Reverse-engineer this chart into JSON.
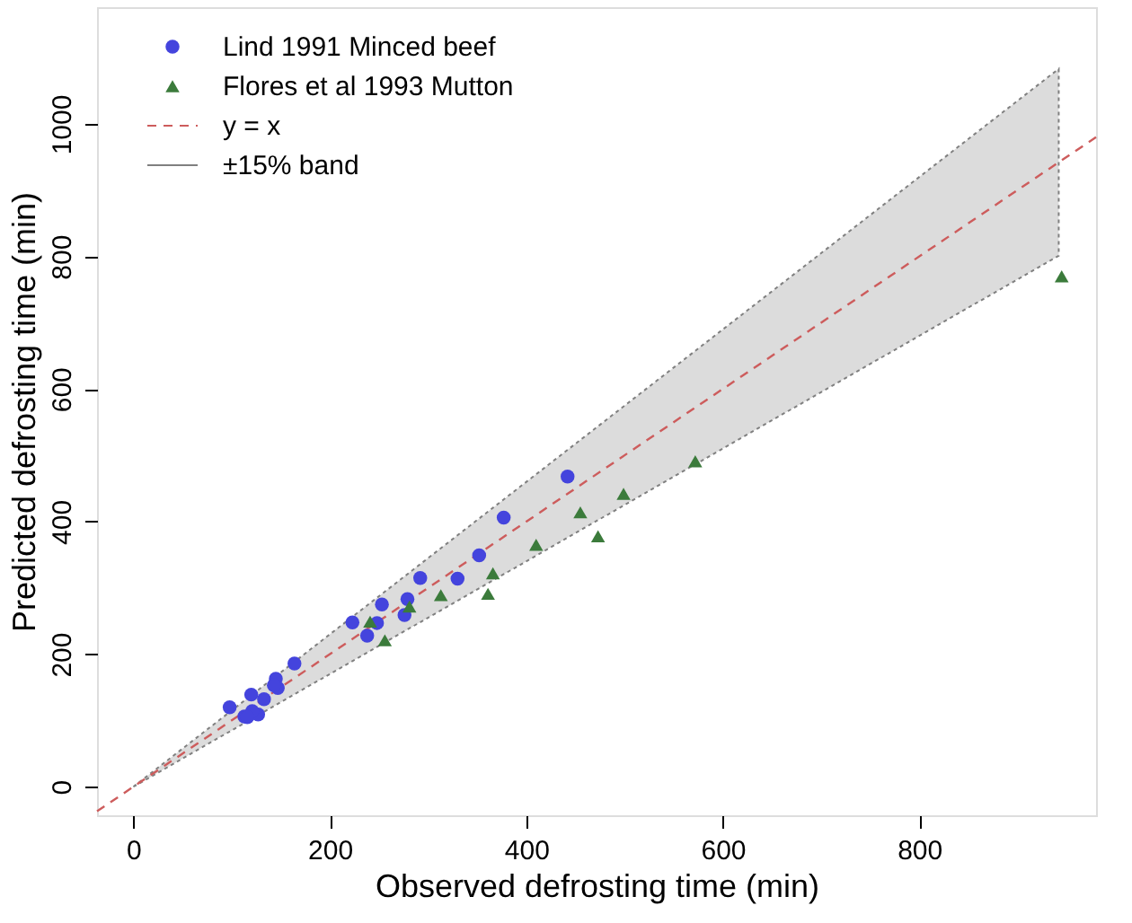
{
  "chart_data": {
    "type": "scatter",
    "xlabel": "Observed defrosting time (min)",
    "ylabel": "Predicted defrosting time (min)",
    "xlim": [
      -37,
      980
    ],
    "ylim": [
      -43,
      1176
    ],
    "xticks": [
      0,
      200,
      400,
      600,
      800
    ],
    "yticks": [
      0,
      200,
      400,
      600,
      800,
      1000
    ],
    "grid": false,
    "legend": "top left",
    "annotations": [
      "±15% band"
    ],
    "series": [
      {
        "name": "Lind 1991 Minced beef",
        "color": "#4444dd",
        "marker": "circle",
        "x": [
          442,
          377,
          352,
          330,
          292,
          279,
          276,
          253,
          248,
          238,
          223,
          164,
          145,
          147,
          143,
          133,
          120,
          98,
          127,
          121,
          113,
          116
        ],
        "values": [
          468,
          406,
          349,
          314,
          315,
          283,
          259,
          275,
          247,
          228,
          248,
          186,
          163,
          149,
          153,
          132,
          139,
          120,
          109,
          114,
          106,
          105
        ]
      },
      {
        "name": "Flores et al 1993 Mutton",
        "color": "#3b7b3b",
        "marker": "triangle",
        "x": [
          241,
          256,
          281,
          313,
          366,
          361,
          410,
          455,
          473,
          499,
          572,
          945
        ],
        "values": [
          249,
          221,
          272,
          289,
          322,
          291,
          365,
          414,
          378,
          442,
          491,
          770
        ]
      },
      {
        "name": "y = x",
        "type": "line",
        "color": "#cd5c5c",
        "line_style": "dashed",
        "marker": "none",
        "x": [
          -37,
          0,
          942,
          980
        ],
        "values": [
          -37,
          0,
          942,
          980
        ],
        "lower": [
          null,
          0,
          801,
          null
        ],
        "upper": [
          null,
          0,
          1083,
          null
        ]
      }
    ]
  }
}
